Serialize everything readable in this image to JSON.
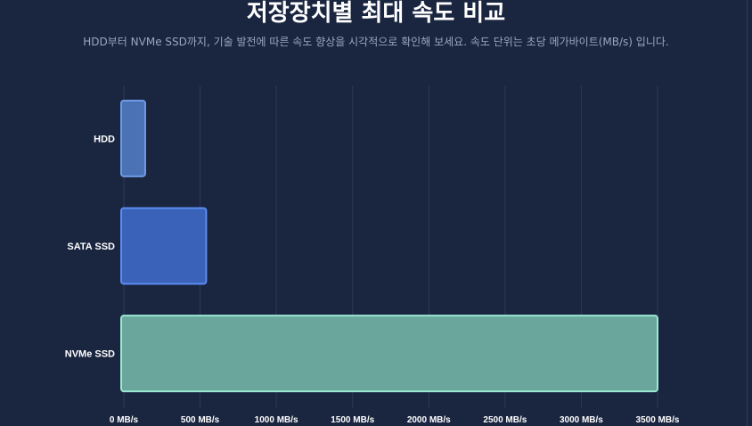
{
  "title": "저장장치별 최대 속도 비교",
  "subtitle": "HDD부터 NVMe SSD까지, 기술 발전에 따른 속도 향상을 시각적으로 확인해 보세요. 속도 단위는 초당 메가바이트(MB/s) 입니다.",
  "colors": {
    "background": "#1a2540",
    "grid": "#2c3a57",
    "hdd_fill": "#4a72b5",
    "hdd_stroke": "#6f9be6",
    "sata_fill": "#3a62b8",
    "sata_stroke": "#5b8cf0",
    "nvme_fill": "#6aa69c",
    "nvme_stroke": "#9be8d4"
  },
  "chart_data": {
    "type": "bar",
    "orientation": "horizontal",
    "title": "저장장치별 최대 속도 비교",
    "xlabel": "",
    "ylabel": "",
    "unit": "MB/s",
    "categories": [
      "HDD",
      "SATA SSD",
      "NVMe SSD"
    ],
    "values": [
      140,
      540,
      3500
    ],
    "xlim": [
      0,
      3500
    ],
    "x_ticks": [
      0,
      500,
      1000,
      1500,
      2000,
      2500,
      3000,
      3500
    ],
    "x_tick_labels": [
      "0 MB/s",
      "500 MB/s",
      "1000 MB/s",
      "1500 MB/s",
      "2000 MB/s",
      "2500 MB/s",
      "3000 MB/s",
      "3500 MB/s"
    ],
    "grid": "vertical",
    "legend": "none"
  }
}
